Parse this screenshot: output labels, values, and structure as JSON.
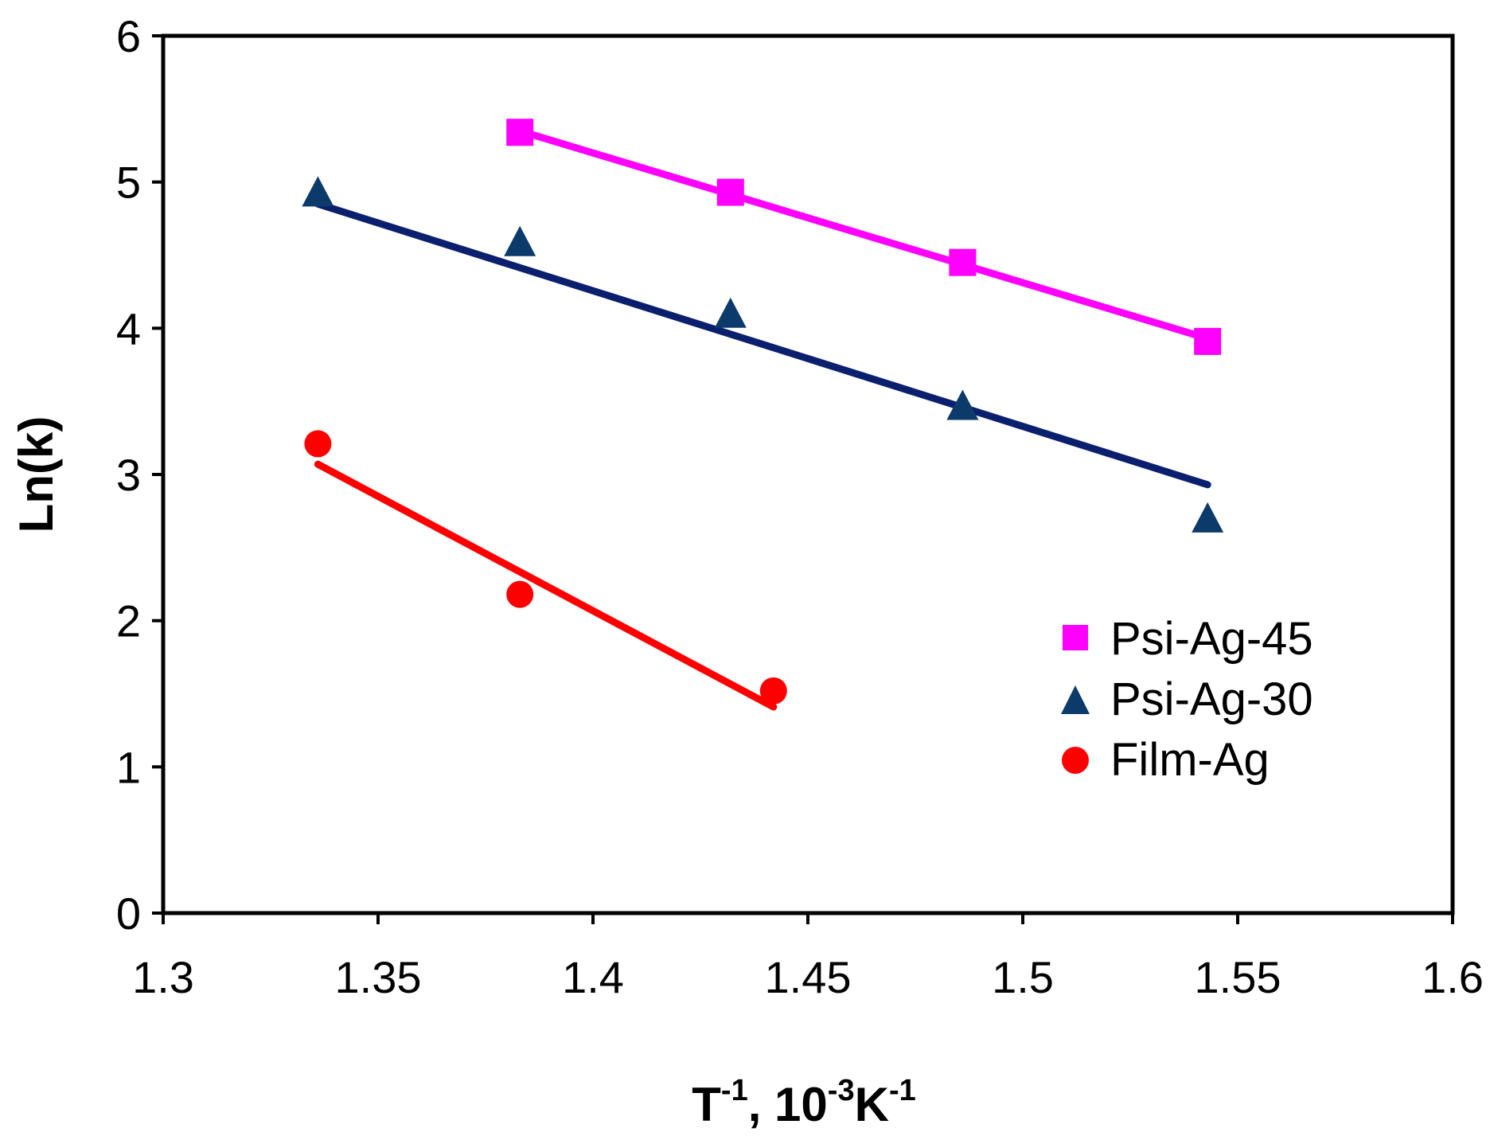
{
  "chart_data": {
    "type": "scatter",
    "title": "",
    "xlabel": {
      "base": "T",
      "sup1": "-1",
      "mid": ", 10",
      "sup2": "-3",
      "unit": "K",
      "sup3": "-1"
    },
    "ylabel": "Ln(k)",
    "xlim": [
      1.3,
      1.6
    ],
    "ylim": [
      0,
      6
    ],
    "x_ticks": [
      "1.3",
      "1.35",
      "1.4",
      "1.45",
      "1.5",
      "1.55",
      "1.6"
    ],
    "y_ticks": [
      "0",
      "1",
      "2",
      "3",
      "4",
      "5",
      "6"
    ],
    "legend_position": "right-middle",
    "series": [
      {
        "name": "Psi-Ag-45",
        "marker": "square",
        "color": "#ff00ff",
        "x": [
          1.383,
          1.432,
          1.486,
          1.543
        ],
        "y": [
          5.34,
          4.93,
          4.45,
          3.91
        ],
        "fit": {
          "x": [
            1.383,
            1.543
          ],
          "y": [
            5.35,
            3.93
          ]
        }
      },
      {
        "name": "Psi-Ag-30",
        "marker": "triangle",
        "color": "#0b3a6b",
        "line_color": "#0a1f6e",
        "x": [
          1.336,
          1.383,
          1.432,
          1.486,
          1.543
        ],
        "y": [
          4.92,
          4.58,
          4.09,
          3.46,
          2.69
        ],
        "fit": {
          "x": [
            1.336,
            1.543
          ],
          "y": [
            4.85,
            2.93
          ]
        }
      },
      {
        "name": "Film-Ag",
        "marker": "circle",
        "color": "#ff0000",
        "x": [
          1.336,
          1.383,
          1.442
        ],
        "y": [
          3.21,
          2.18,
          1.52
        ],
        "fit": {
          "x": [
            1.336,
            1.442
          ],
          "y": [
            3.07,
            1.41
          ]
        }
      }
    ]
  }
}
